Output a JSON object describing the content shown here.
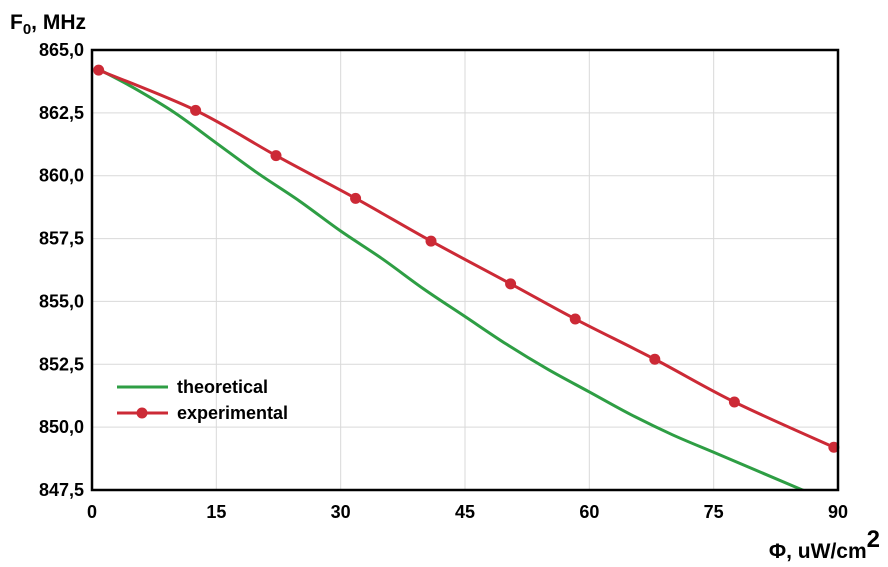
{
  "chart_data": {
    "type": "line",
    "ylabel": {
      "main": "F",
      "sub": "0",
      "rest": ", MHz"
    },
    "xlabel": {
      "main": "Φ,  uW/cm",
      "sup": "2"
    },
    "xlim": [
      0,
      90
    ],
    "ylim": [
      847.5,
      865.0
    ],
    "x_ticks": [
      0,
      15,
      30,
      45,
      60,
      75,
      90
    ],
    "x_tick_labels": [
      "0",
      "15",
      "30",
      "45",
      "60",
      "75",
      "90"
    ],
    "y_ticks": [
      865.0,
      862.5,
      860.0,
      857.5,
      855.0,
      852.5,
      850.0,
      847.5
    ],
    "y_tick_labels": [
      "865,0",
      "862,5",
      "860,0",
      "857,5",
      "855,0",
      "852,5",
      "850,0",
      "847,5"
    ],
    "grid": true,
    "legend": "bottom-left",
    "series": [
      {
        "name": "theoretical",
        "color": "#2e9e44",
        "markers": false,
        "x": [
          1,
          5,
          10,
          15,
          20,
          25,
          30,
          35,
          40,
          45,
          50,
          55,
          60,
          65,
          70,
          75,
          80,
          85,
          90
        ],
        "y": [
          864.2,
          863.5,
          862.5,
          861.3,
          860.1,
          859.0,
          857.8,
          856.7,
          855.5,
          854.4,
          853.3,
          852.3,
          851.4,
          850.5,
          849.7,
          849.0,
          848.3,
          847.6,
          846.9
        ]
      },
      {
        "name": "experimental",
        "color": "#cc2a36",
        "markers": true,
        "x": [
          0.8,
          12.5,
          22.2,
          31.8,
          40.9,
          50.5,
          58.3,
          67.9,
          77.5,
          89.5
        ],
        "y": [
          864.2,
          862.6,
          860.8,
          859.1,
          857.4,
          855.7,
          854.3,
          852.7,
          851.0,
          849.2
        ]
      }
    ]
  }
}
